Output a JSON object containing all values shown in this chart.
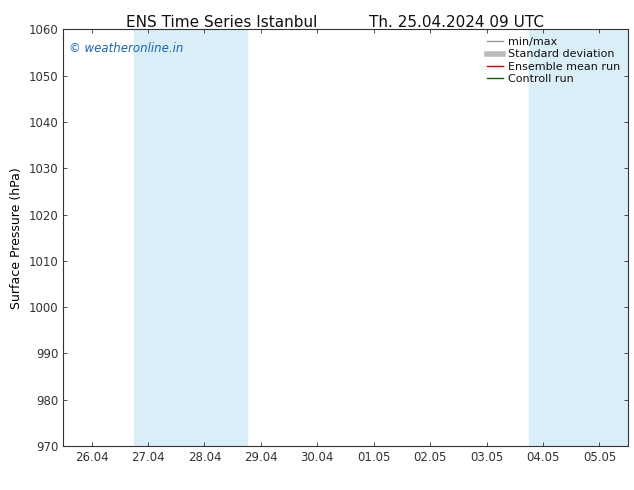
{
  "title_left": "ENS Time Series Istanbul",
  "title_right": "Th. 25.04.2024 09 UTC",
  "ylabel": "Surface Pressure (hPa)",
  "ylim": [
    970,
    1060
  ],
  "yticks": [
    970,
    980,
    990,
    1000,
    1010,
    1020,
    1030,
    1040,
    1050,
    1060
  ],
  "xtick_labels": [
    "26.04",
    "27.04",
    "28.04",
    "29.04",
    "30.04",
    "01.05",
    "02.05",
    "03.05",
    "04.05",
    "05.05"
  ],
  "xtick_positions": [
    0,
    1,
    2,
    3,
    4,
    5,
    6,
    7,
    8,
    9
  ],
  "xlim": [
    -0.5,
    9.5
  ],
  "shaded_regions": [
    {
      "x_start": 0.75,
      "x_end": 2.75,
      "color": "#daeef8"
    },
    {
      "x_start": 7.75,
      "x_end": 9.5,
      "color": "#daeef8"
    }
  ],
  "watermark_text": "© weatheronline.in",
  "watermark_color": "#1565c0",
  "background_color": "#ffffff",
  "plot_bg_color": "#ffffff",
  "legend_entries": [
    {
      "label": "min/max",
      "color": "#999999",
      "lw": 1.0
    },
    {
      "label": "Standard deviation",
      "color": "#bbbbbb",
      "lw": 4.0
    },
    {
      "label": "Ensemble mean run",
      "color": "#dd0000",
      "lw": 1.0
    },
    {
      "label": "Controll run",
      "color": "#006600",
      "lw": 1.0
    }
  ],
  "spine_color": "#333333",
  "tick_color": "#333333",
  "title_fontsize": 11,
  "label_fontsize": 9,
  "tick_fontsize": 8.5,
  "legend_fontsize": 8,
  "watermark_fontsize": 8.5
}
